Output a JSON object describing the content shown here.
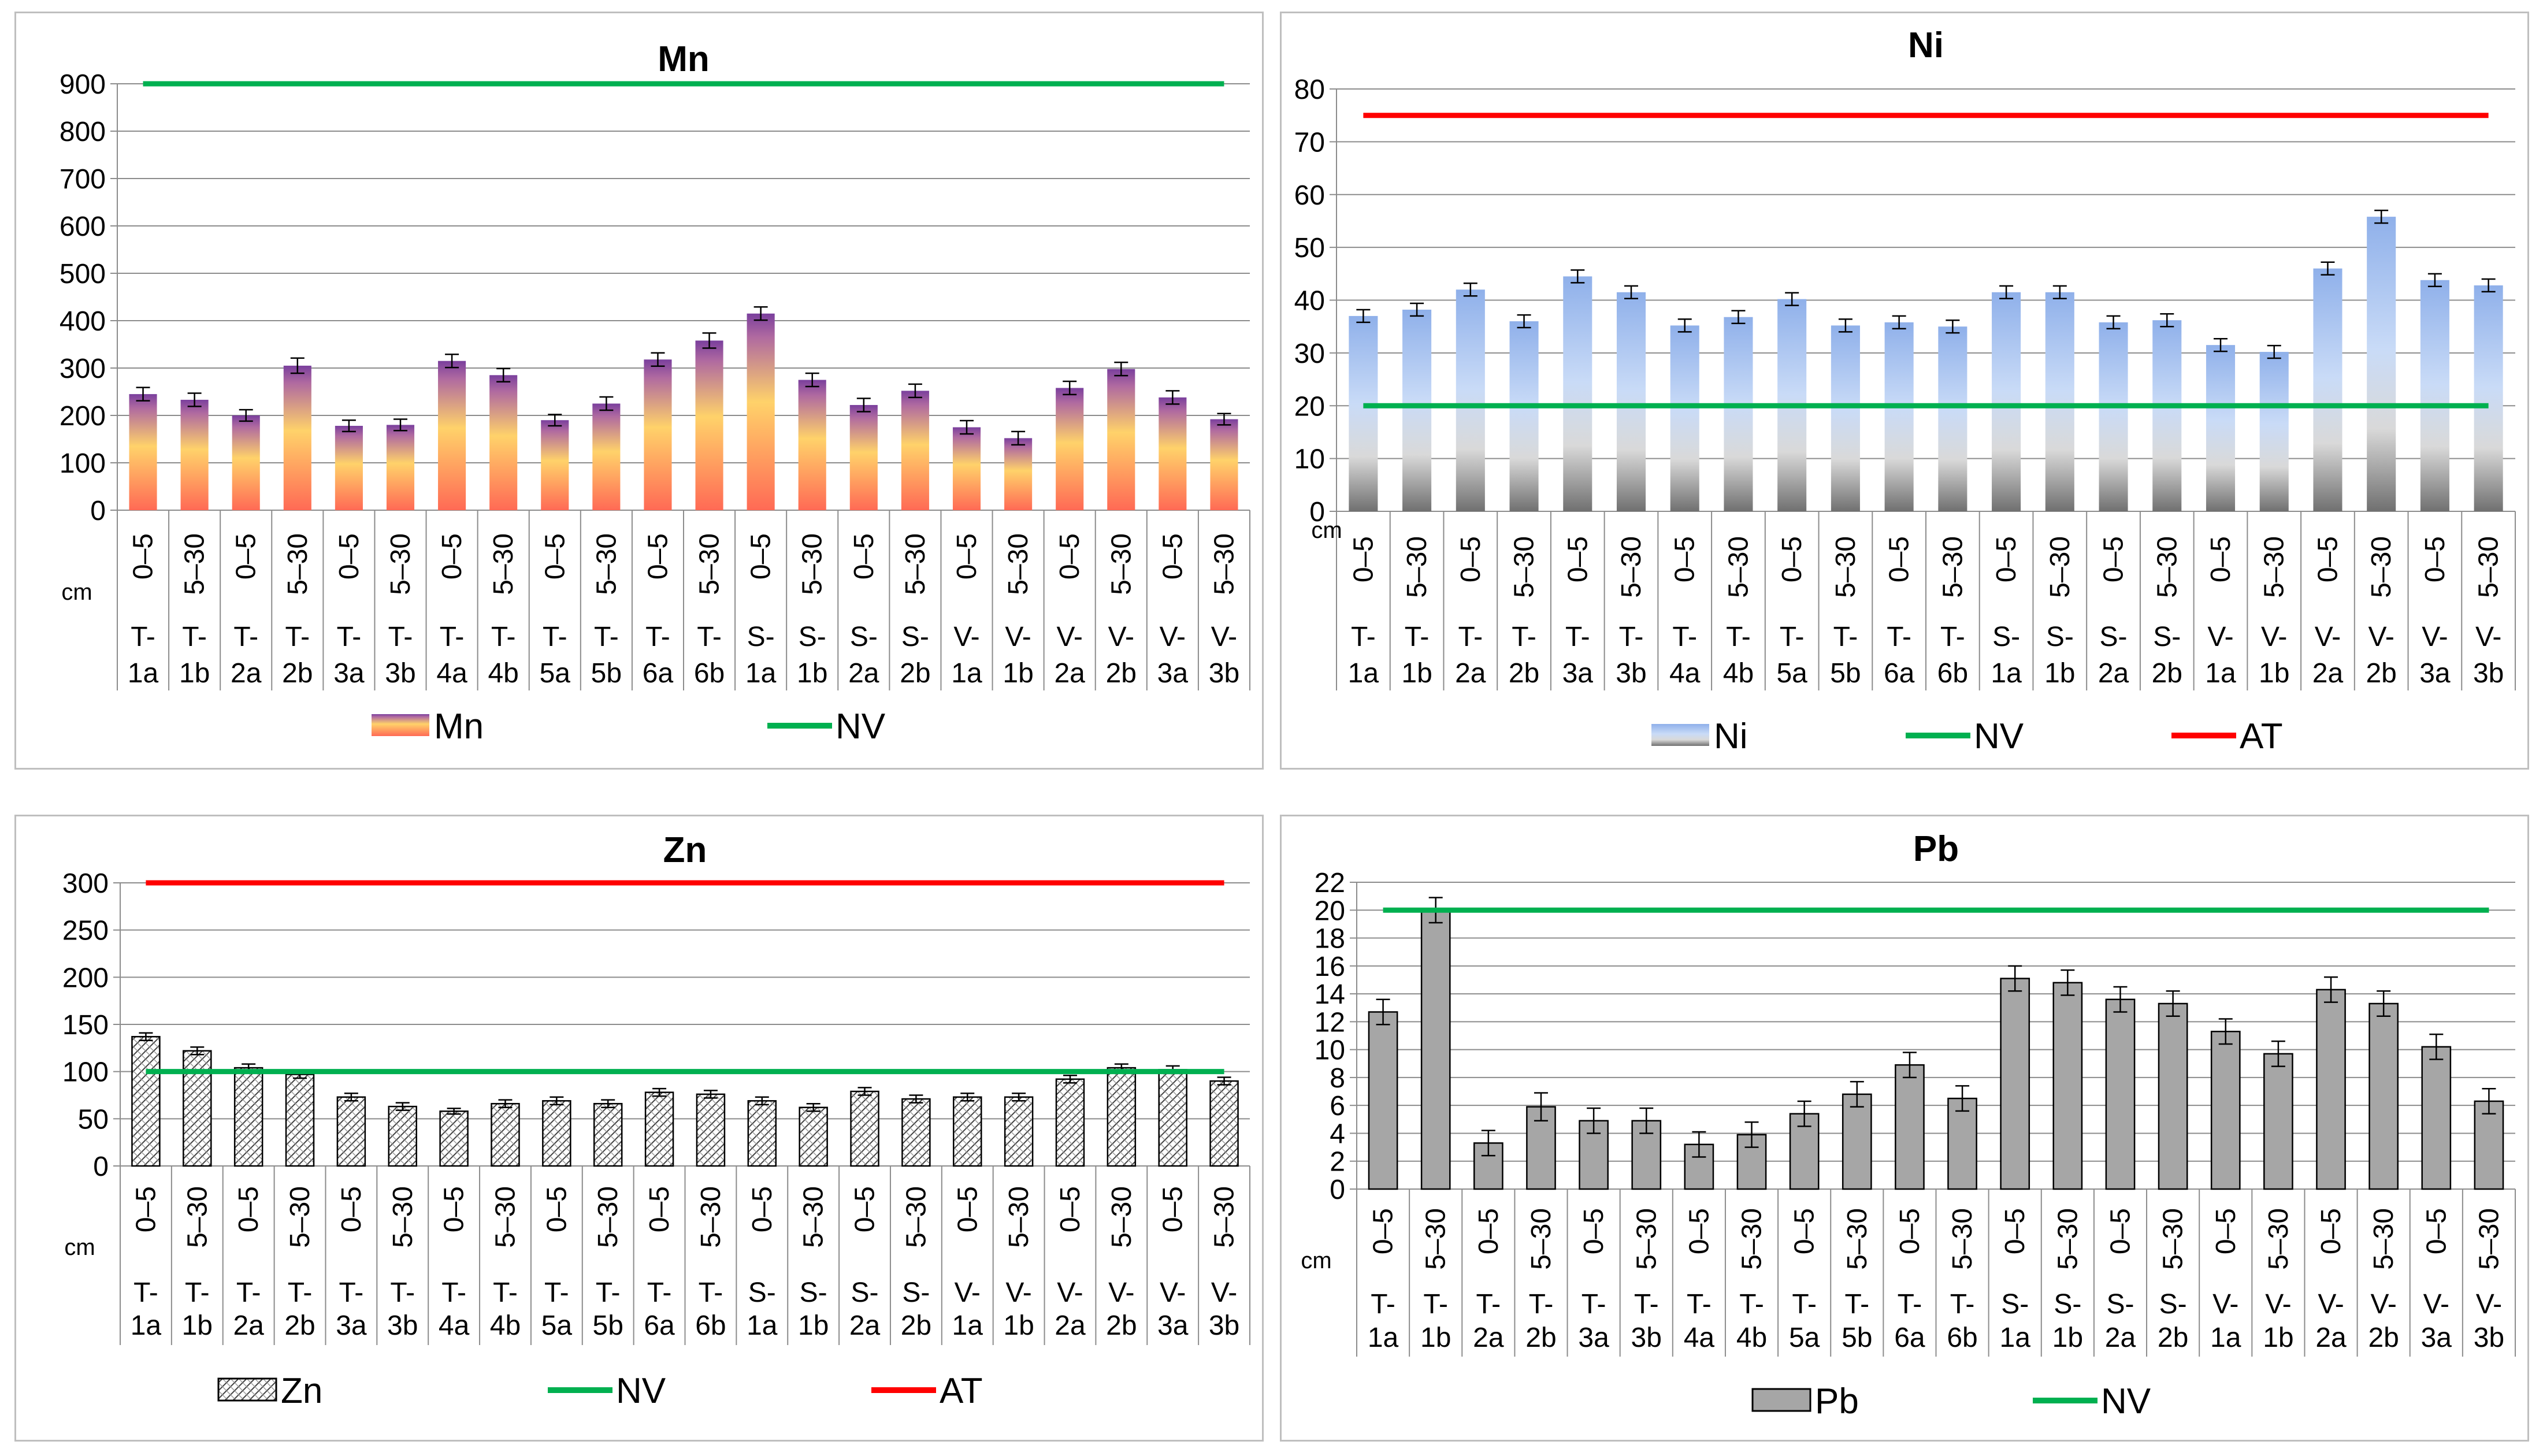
{
  "chart_data": [
    {
      "id": "mn",
      "type": "bar",
      "title": "Mn",
      "unit_label": "cm",
      "ylim": [
        0,
        900
      ],
      "yticks": [
        0,
        100,
        200,
        300,
        400,
        500,
        600,
        700,
        800,
        900
      ],
      "depths": [
        "0–5",
        "5–30",
        "0–5",
        "5–30",
        "0–5",
        "5–30",
        "0–5",
        "5–30",
        "0–5",
        "5–30",
        "0–5",
        "5–30",
        "0–5",
        "5–30",
        "0–5",
        "5–30",
        "0–5",
        "5–30",
        "0–5",
        "5–30",
        "0–5",
        "5–30"
      ],
      "sites": [
        [
          "T-",
          "1a"
        ],
        [
          "T-",
          "1b"
        ],
        [
          "T-",
          "2a"
        ],
        [
          "T-",
          "2b"
        ],
        [
          "T-",
          "3a"
        ],
        [
          "T-",
          "3b"
        ],
        [
          "T-",
          "4a"
        ],
        [
          "T-",
          "4b"
        ],
        [
          "T-",
          "5a"
        ],
        [
          "T-",
          "5b"
        ],
        [
          "T-",
          "6a"
        ],
        [
          "T-",
          "6b"
        ],
        [
          "S-",
          "1a"
        ],
        [
          "S-",
          "1b"
        ],
        [
          "S-",
          "2a"
        ],
        [
          "S-",
          "2b"
        ],
        [
          "V-",
          "1a"
        ],
        [
          "V-",
          "1b"
        ],
        [
          "V-",
          "2a"
        ],
        [
          "V-",
          "2b"
        ],
        [
          "V-",
          "3a"
        ],
        [
          "V-",
          "3b"
        ]
      ],
      "series": [
        {
          "name": "Mn",
          "values": [
            245,
            233,
            200,
            305,
            178,
            180,
            315,
            285,
            190,
            225,
            318,
            358,
            415,
            275,
            222,
            252,
            175,
            152,
            258,
            298,
            238,
            192
          ],
          "errors": [
            14,
            14,
            12,
            16,
            12,
            12,
            14,
            14,
            12,
            14,
            14,
            16,
            14,
            14,
            14,
            14,
            14,
            14,
            14,
            14,
            14,
            12
          ]
        }
      ],
      "lines": [
        {
          "name": "NV",
          "value": 900,
          "color": "#00b050"
        }
      ],
      "legend": [
        "Mn",
        "NV"
      ],
      "style": "gradient-mn"
    },
    {
      "id": "ni",
      "type": "bar",
      "title": "Ni",
      "unit_label": "cm",
      "ylim": [
        0,
        80
      ],
      "yticks": [
        0,
        10,
        20,
        30,
        40,
        50,
        60,
        70,
        80
      ],
      "depths": [
        "0–5",
        "5–30",
        "0–5",
        "5–30",
        "0–5",
        "5–30",
        "0–5",
        "5–30",
        "0–5",
        "5–30",
        "0–5",
        "5–30",
        "0–5",
        "5–30",
        "0–5",
        "5–30",
        "0–5",
        "5–30",
        "0–5",
        "5–30",
        "0–5",
        "5–30"
      ],
      "sites": [
        [
          "T-",
          "1a"
        ],
        [
          "T-",
          "1b"
        ],
        [
          "T-",
          "2a"
        ],
        [
          "T-",
          "2b"
        ],
        [
          "T-",
          "3a"
        ],
        [
          "T-",
          "3b"
        ],
        [
          "T-",
          "4a"
        ],
        [
          "T-",
          "4b"
        ],
        [
          "T-",
          "5a"
        ],
        [
          "T-",
          "5b"
        ],
        [
          "T-",
          "6a"
        ],
        [
          "T-",
          "6b"
        ],
        [
          "S-",
          "1a"
        ],
        [
          "S-",
          "1b"
        ],
        [
          "S-",
          "2a"
        ],
        [
          "S-",
          "2b"
        ],
        [
          "V-",
          "1a"
        ],
        [
          "V-",
          "1b"
        ],
        [
          "V-",
          "2a"
        ],
        [
          "V-",
          "2b"
        ],
        [
          "V-",
          "3a"
        ],
        [
          "V-",
          "3b"
        ]
      ],
      "series": [
        {
          "name": "Ni",
          "values": [
            37,
            38.2,
            42,
            36,
            44.5,
            41.5,
            35.2,
            36.8,
            40.2,
            35.2,
            35.8,
            35,
            41.5,
            41.5,
            35.8,
            36.2,
            31.5,
            30.2,
            46,
            55.8,
            43.8,
            42.8
          ],
          "errors": [
            1.2,
            1.2,
            1.2,
            1.2,
            1.2,
            1.2,
            1.2,
            1.2,
            1.2,
            1.2,
            1.2,
            1.2,
            1.2,
            1.2,
            1.2,
            1.2,
            1.2,
            1.2,
            1.2,
            1.2,
            1.2,
            1.2
          ]
        }
      ],
      "lines": [
        {
          "name": "NV",
          "value": 20,
          "color": "#00b050"
        },
        {
          "name": "AT",
          "value": 75,
          "color": "#ff0000"
        }
      ],
      "legend": [
        "Ni",
        "NV",
        "AT"
      ],
      "style": "gradient-ni"
    },
    {
      "id": "zn",
      "type": "bar",
      "title": "Zn",
      "unit_label": "cm",
      "ylim": [
        0,
        300
      ],
      "yticks": [
        0,
        50,
        100,
        150,
        200,
        250,
        300
      ],
      "depths": [
        "0–5",
        "5–30",
        "0–5",
        "5–30",
        "0–5",
        "5–30",
        "0–5",
        "5–30",
        "0–5",
        "5–30",
        "0–5",
        "5–30",
        "0–5",
        "5–30",
        "0–5",
        "5–30",
        "0–5",
        "5–30",
        "0–5",
        "5–30",
        "0–5",
        "5–30"
      ],
      "sites": [
        [
          "T-",
          "1a"
        ],
        [
          "T-",
          "1b"
        ],
        [
          "T-",
          "2a"
        ],
        [
          "T-",
          "2b"
        ],
        [
          "T-",
          "3a"
        ],
        [
          "T-",
          "3b"
        ],
        [
          "T-",
          "4a"
        ],
        [
          "T-",
          "4b"
        ],
        [
          "T-",
          "5a"
        ],
        [
          "T-",
          "5b"
        ],
        [
          "T-",
          "6a"
        ],
        [
          "T-",
          "6b"
        ],
        [
          "S-",
          "1a"
        ],
        [
          "S-",
          "1b"
        ],
        [
          "S-",
          "2a"
        ],
        [
          "S-",
          "2b"
        ],
        [
          "V-",
          "1a"
        ],
        [
          "V-",
          "1b"
        ],
        [
          "V-",
          "2a"
        ],
        [
          "V-",
          "2b"
        ],
        [
          "V-",
          "3a"
        ],
        [
          "V-",
          "3b"
        ]
      ],
      "series": [
        {
          "name": "Zn",
          "values": [
            137,
            122,
            104,
            97,
            73,
            63,
            58,
            66,
            69,
            66,
            78,
            76,
            69,
            62,
            79,
            71,
            73,
            73,
            92,
            104,
            102,
            90
          ],
          "errors": [
            4,
            4,
            4,
            4,
            4,
            4,
            3,
            4,
            4,
            4,
            4,
            4,
            4,
            4,
            4,
            4,
            4,
            4,
            4,
            4,
            4,
            4
          ]
        }
      ],
      "lines": [
        {
          "name": "NV",
          "value": 100,
          "color": "#00b050"
        },
        {
          "name": "AT",
          "value": 300,
          "color": "#ff0000"
        }
      ],
      "legend": [
        "Zn",
        "NV",
        "AT"
      ],
      "style": "hatch"
    },
    {
      "id": "pb",
      "type": "bar",
      "title": "Pb",
      "unit_label": "cm",
      "ylim": [
        0,
        22
      ],
      "yticks": [
        0,
        2,
        4,
        6,
        8,
        10,
        12,
        14,
        16,
        18,
        20,
        22
      ],
      "depths": [
        "0–5",
        "5–30",
        "0–5",
        "5–30",
        "0–5",
        "5–30",
        "0–5",
        "5–30",
        "0–5",
        "5–30",
        "0–5",
        "5–30",
        "0–5",
        "5–30",
        "0–5",
        "5–30",
        "0–5",
        "5–30",
        "0–5",
        "5–30",
        "0–5",
        "5–30"
      ],
      "sites": [
        [
          "T-",
          "1a"
        ],
        [
          "T-",
          "1b"
        ],
        [
          "T-",
          "2a"
        ],
        [
          "T-",
          "2b"
        ],
        [
          "T-",
          "3a"
        ],
        [
          "T-",
          "3b"
        ],
        [
          "T-",
          "4a"
        ],
        [
          "T-",
          "4b"
        ],
        [
          "T-",
          "5a"
        ],
        [
          "T-",
          "5b"
        ],
        [
          "T-",
          "6a"
        ],
        [
          "T-",
          "6b"
        ],
        [
          "S-",
          "1a"
        ],
        [
          "S-",
          "1b"
        ],
        [
          "S-",
          "2a"
        ],
        [
          "S-",
          "2b"
        ],
        [
          "V-",
          "1a"
        ],
        [
          "V-",
          "1b"
        ],
        [
          "V-",
          "2a"
        ],
        [
          "V-",
          "2b"
        ],
        [
          "V-",
          "3a"
        ],
        [
          "V-",
          "3b"
        ]
      ],
      "series": [
        {
          "name": "Pb",
          "values": [
            12.7,
            20,
            3.3,
            5.9,
            4.9,
            4.9,
            3.2,
            3.9,
            5.4,
            6.8,
            8.9,
            6.5,
            15.1,
            14.8,
            13.6,
            13.3,
            11.3,
            9.7,
            14.3,
            13.3,
            10.2,
            6.3
          ],
          "errors": [
            0.9,
            0.9,
            0.9,
            1.0,
            0.9,
            0.9,
            0.9,
            0.9,
            0.9,
            0.9,
            0.9,
            0.9,
            0.9,
            0.9,
            0.9,
            0.9,
            0.9,
            0.9,
            0.9,
            0.9,
            0.9,
            0.9
          ]
        }
      ],
      "lines": [
        {
          "name": "NV",
          "value": 20,
          "color": "#00b050"
        }
      ],
      "legend": [
        "Pb",
        "NV"
      ],
      "style": "gray"
    }
  ]
}
